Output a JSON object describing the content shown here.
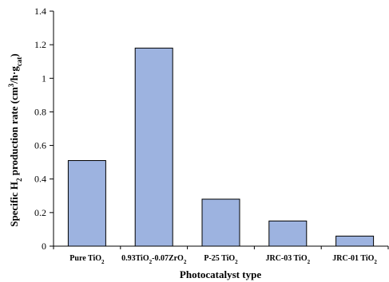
{
  "chart_data": {
    "type": "bar",
    "title": "",
    "xlabel": "Photocatalyst type",
    "ylabel": {
      "pre": "Specific H",
      "sub1": "2",
      "mid": " production rate (cm",
      "sup": "3",
      "mid2": "/h·g",
      "sub2": "cat",
      "post": ")"
    },
    "ylim": [
      0,
      1.4
    ],
    "yticks": [
      "0",
      "0.2",
      "0.4",
      "0.6",
      "0.8",
      "1",
      "1.2",
      "1.4"
    ],
    "grid": false,
    "bar_color": "#9db3e0",
    "categories": [
      {
        "parts": [
          [
            "Pure TiO",
            ""
          ],
          [
            "2",
            "sub"
          ]
        ]
      },
      {
        "parts": [
          [
            "0.93TiO",
            ""
          ],
          [
            "2",
            "sub"
          ],
          [
            "-0.07ZrO",
            ""
          ],
          [
            "2",
            "sub"
          ]
        ]
      },
      {
        "parts": [
          [
            "P-25 TiO",
            ""
          ],
          [
            "2",
            "sub"
          ]
        ]
      },
      {
        "parts": [
          [
            "JRC-03 TiO",
            ""
          ],
          [
            "2",
            "sub"
          ]
        ]
      },
      {
        "parts": [
          [
            "JRC-01 TiO",
            ""
          ],
          [
            "2",
            "sub"
          ]
        ]
      }
    ],
    "values": [
      0.51,
      1.18,
      0.28,
      0.15,
      0.06
    ]
  }
}
